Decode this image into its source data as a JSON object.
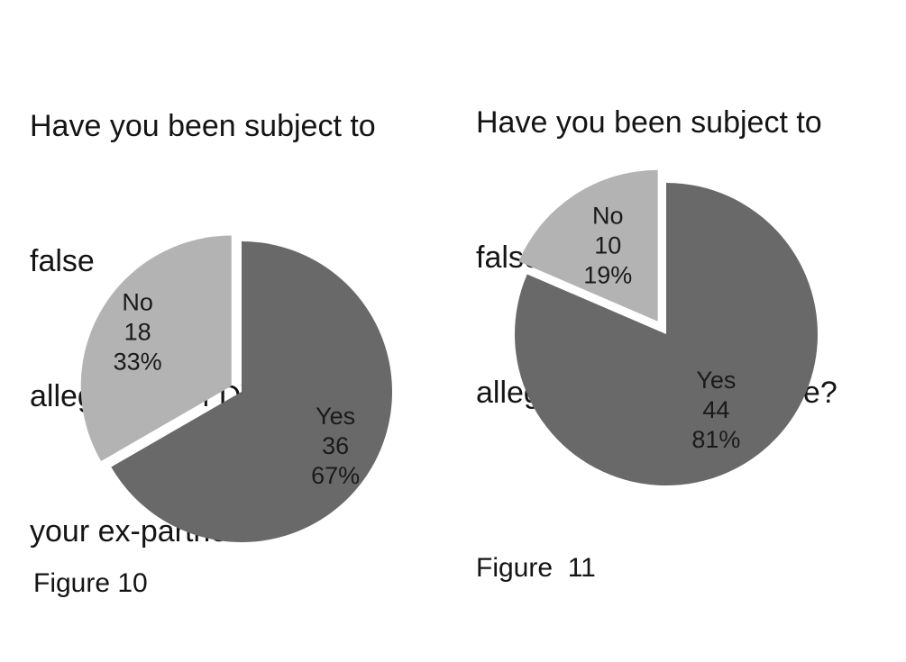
{
  "figures": [
    {
      "title_lines": [
        "Have you been subject to",
        "false",
        "allegations of DV against",
        "your ex-partner?"
      ],
      "caption": "Figure 10"
    },
    {
      "title_lines": [
        "Have you been subject to",
        "false",
        "allegations of child abuse?"
      ],
      "caption": "Figure  11"
    }
  ],
  "chart_data": [
    {
      "type": "pie",
      "title": "Have you been subject to false allegations of DV against your ex-partner?",
      "caption": "Figure 10",
      "start_angle_deg": 0,
      "direction": "clockwise",
      "legend_position": "none",
      "data_label_format": "label, value, percent",
      "categories": [
        "Yes",
        "No"
      ],
      "values": [
        36,
        18
      ],
      "slices": [
        {
          "label": "Yes",
          "value": "36",
          "percent": "67%",
          "color": "#696969",
          "exploded": false
        },
        {
          "label": "No",
          "value": "18",
          "percent": "33%",
          "color": "#b3b3b3",
          "exploded": true
        }
      ]
    },
    {
      "type": "pie",
      "title": "Have you been subject to false allegations of child abuse?",
      "caption": "Figure  11",
      "start_angle_deg": 0,
      "direction": "clockwise",
      "legend_position": "none",
      "data_label_format": "label, value, percent",
      "categories": [
        "Yes",
        "No"
      ],
      "values": [
        44,
        10
      ],
      "slices": [
        {
          "label": "Yes",
          "value": "44",
          "percent": "81%",
          "color": "#696969",
          "exploded": false
        },
        {
          "label": "No",
          "value": "10",
          "percent": "19%",
          "color": "#b3b3b3",
          "exploded": true
        }
      ]
    }
  ],
  "colors": {
    "yes_slice": "#696969",
    "no_slice": "#b3b3b3",
    "label_text": "#1a1a1a",
    "background": "#ffffff"
  }
}
